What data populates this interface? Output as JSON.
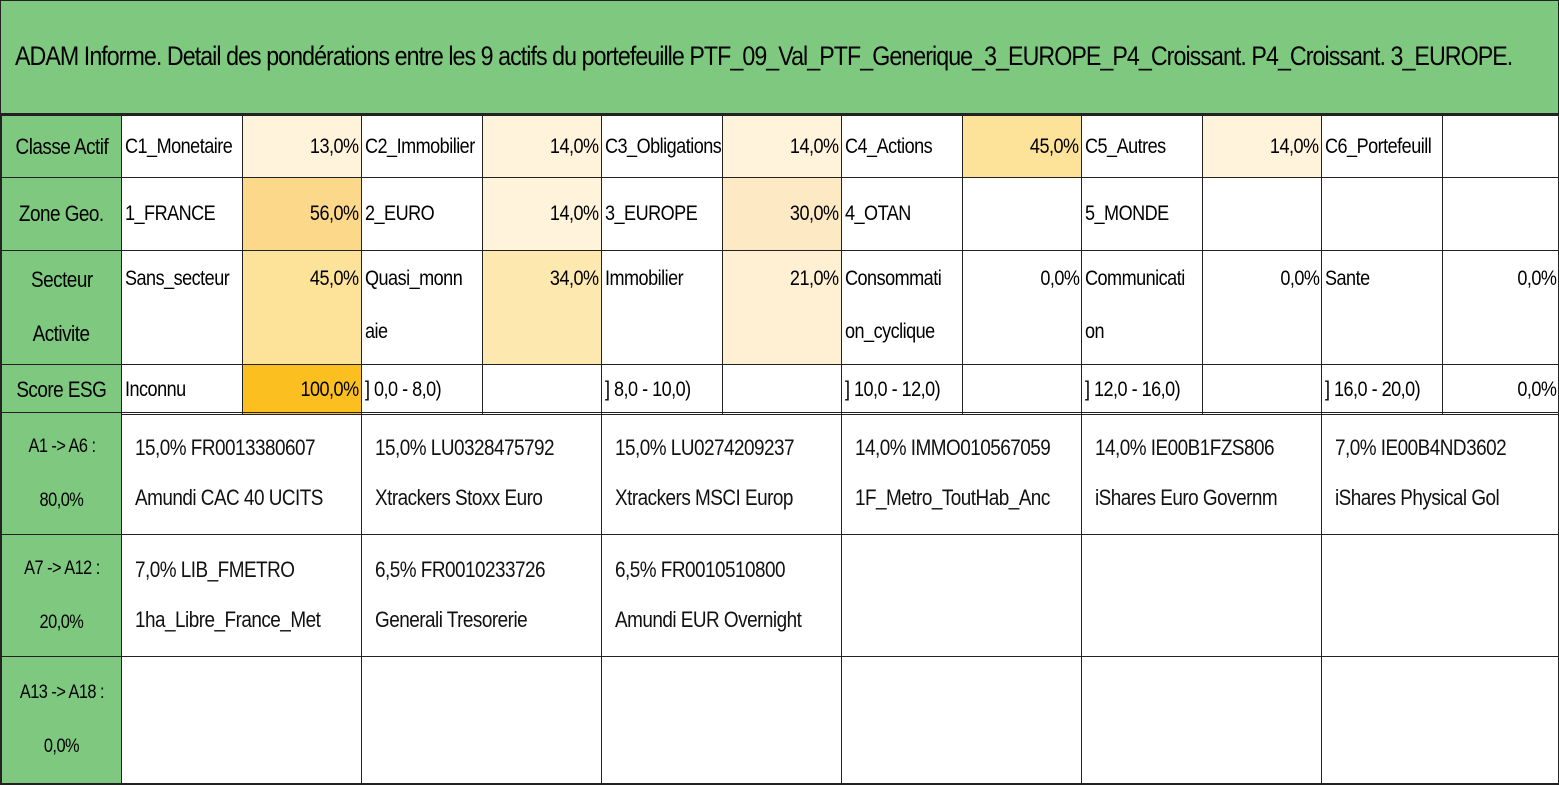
{
  "title": "ADAM Informe. Detail des pondérations entre les 9 actifs du portefeuille PTF_09_Val_PTF_Generique_3_EUROPE_P4_Croissant. P4_Croissant. 3_EUROPE.",
  "colors": {
    "header_green": "#7ec87f",
    "heat_light": "#fff3dc",
    "heat_mid": "#fde9b0",
    "heat_strong": "#fcd98a",
    "heat_full": "#fbbf1f"
  },
  "rows": [
    {
      "header": "Classe Actif",
      "cells": [
        {
          "label": "C1_Monetaire",
          "pct": "13,0%"
        },
        {
          "label": "C2_Immobilier",
          "pct": "14,0%"
        },
        {
          "label": "C3_Obligations",
          "pct": "14,0%"
        },
        {
          "label": "C4_Actions",
          "pct": "45,0%"
        },
        {
          "label": "C5_Autres",
          "pct": "14,0%"
        },
        {
          "label": "C6_Portefeuill",
          "pct": ""
        }
      ]
    },
    {
      "header": "Zone Geo.",
      "cells": [
        {
          "label": "1_FRANCE",
          "pct": "56,0%"
        },
        {
          "label": "2_EURO",
          "pct": "14,0%"
        },
        {
          "label": "3_EUROPE",
          "pct": "30,0%"
        },
        {
          "label": "4_OTAN",
          "pct": ""
        },
        {
          "label": "5_MONDE",
          "pct": ""
        },
        {
          "label": "",
          "pct": ""
        }
      ]
    },
    {
      "header_line1": "Secteur",
      "header_line2": "Activite",
      "cells": [
        {
          "label_line1": "Sans_secteur",
          "label_line2": "",
          "pct": "45,0%"
        },
        {
          "label_line1": "Quasi_monn",
          "label_line2": "aie",
          "pct": "34,0%"
        },
        {
          "label_line1": "Immobilier",
          "label_line2": "",
          "pct": "21,0%"
        },
        {
          "label_line1": "Consommati",
          "label_line2": "on_cyclique",
          "pct": "0,0%"
        },
        {
          "label_line1": "Communicati",
          "label_line2": "on",
          "pct": "0,0%"
        },
        {
          "label_line1": "Sante",
          "label_line2": "",
          "pct": "0,0%"
        }
      ]
    },
    {
      "header": "Score ESG",
      "cells": [
        {
          "label": "Inconnu",
          "pct": "100,0%"
        },
        {
          "label": "] 0,0 - 8,0)",
          "pct": ""
        },
        {
          "label": "] 8,0 - 10,0)",
          "pct": ""
        },
        {
          "label": "] 10,0 - 12,0)",
          "pct": ""
        },
        {
          "label": "] 12,0 - 16,0)",
          "pct": ""
        },
        {
          "label": "] 16,0 - 20,0)",
          "pct": "0,0%"
        }
      ]
    }
  ],
  "groups": [
    {
      "header_line1": "A1 -> A6 :",
      "header_line2": "80,0%",
      "assets": [
        {
          "line1": "15,0% FR0013380607",
          "line2": "Amundi CAC 40 UCITS"
        },
        {
          "line1": "15,0% LU0328475792",
          "line2": "Xtrackers Stoxx Euro"
        },
        {
          "line1": "15,0% LU0274209237",
          "line2": "Xtrackers MSCI Europ"
        },
        {
          "line1": "14,0% IMMO010567059",
          "line2": "1F_Metro_ToutHab_Anc"
        },
        {
          "line1": "14,0% IE00B1FZS806",
          "line2": "iShares Euro Governm"
        },
        {
          "line1": "7,0% IE00B4ND3602",
          "line2": "iShares Physical Gol"
        }
      ]
    },
    {
      "header_line1": "A7 -> A12 :",
      "header_line2": "20,0%",
      "assets": [
        {
          "line1": "7,0% LIB_FMETRO",
          "line2": "1ha_Libre_France_Met"
        },
        {
          "line1": "6,5% FR0010233726",
          "line2": "Generali Tresorerie"
        },
        {
          "line1": "6,5% FR0010510800",
          "line2": "Amundi EUR Overnight"
        },
        {
          "line1": "",
          "line2": ""
        },
        {
          "line1": "",
          "line2": ""
        },
        {
          "line1": "",
          "line2": ""
        }
      ]
    },
    {
      "header_line1": "A13 -> A18 :",
      "header_line2": "0,0%",
      "assets": [
        {
          "line1": "",
          "line2": ""
        },
        {
          "line1": "",
          "line2": ""
        },
        {
          "line1": "",
          "line2": ""
        },
        {
          "line1": "",
          "line2": ""
        },
        {
          "line1": "",
          "line2": ""
        },
        {
          "line1": "",
          "line2": ""
        }
      ]
    }
  ]
}
